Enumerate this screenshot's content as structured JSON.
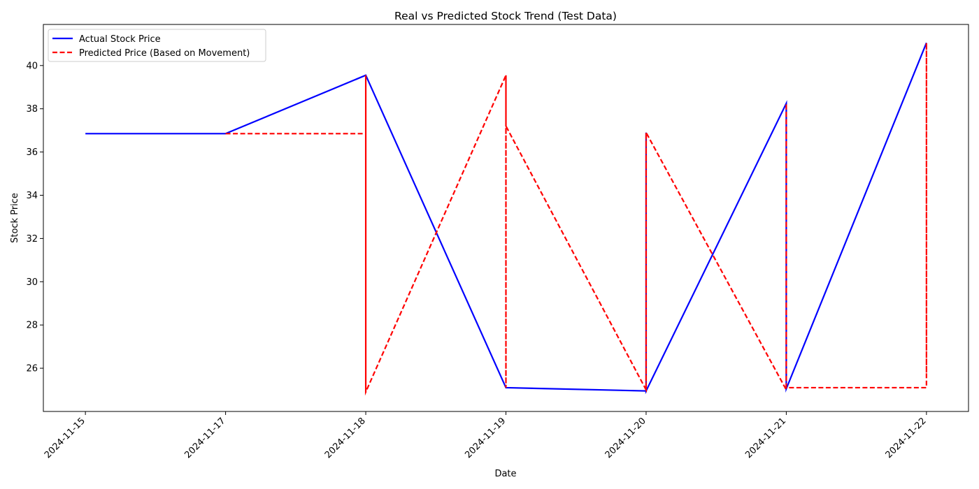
{
  "chart_data": {
    "type": "line",
    "title": "Real vs Predicted Stock Trend (Test Data)",
    "xlabel": "Date",
    "ylabel": "Stock Price",
    "x_ticks": [
      "2024-11-15",
      "2024-11-17",
      "2024-11-18",
      "2024-11-19",
      "2024-11-20",
      "2024-11-21",
      "2024-11-22"
    ],
    "y_ticks": [
      26,
      28,
      30,
      32,
      34,
      36,
      38,
      40
    ],
    "xlim": [
      -0.3,
      6.3
    ],
    "ylim": [
      24.0,
      41.9
    ],
    "legend_position": "top-left",
    "grid": false,
    "series": [
      {
        "name": "Actual Stock Price",
        "color": "#0000ff",
        "style": "solid",
        "points": [
          [
            0,
            36.85
          ],
          [
            1,
            36.85
          ],
          [
            2,
            39.55
          ],
          [
            2,
            39.55
          ],
          [
            2,
            39.55
          ],
          [
            2,
            39.55
          ],
          [
            3,
            25.1
          ],
          [
            3,
            25.1
          ],
          [
            3,
            25.1
          ],
          [
            3,
            25.1
          ],
          [
            4,
            24.95
          ],
          [
            4,
            36.9
          ],
          [
            4,
            24.95
          ],
          [
            4,
            36.9
          ],
          [
            4,
            24.95
          ],
          [
            5,
            38.25
          ],
          [
            5,
            25.05
          ],
          [
            5,
            38.25
          ],
          [
            5,
            25.05
          ],
          [
            6,
            41.05
          ],
          [
            6,
            41.05
          ],
          [
            6,
            41.05
          ]
        ]
      },
      {
        "name": "Predicted Price (Based on Movement)",
        "color": "#ff0000",
        "style": "dashed",
        "points": [
          [
            1,
            36.85
          ],
          [
            2,
            36.85
          ],
          [
            2,
            39.55
          ],
          [
            2,
            24.9
          ],
          [
            2,
            39.55
          ],
          [
            2,
            24.9
          ],
          [
            3,
            39.55
          ],
          [
            3,
            25.1
          ],
          [
            3,
            39.55
          ],
          [
            3,
            37.2
          ],
          [
            4,
            25.0
          ],
          [
            4,
            36.9
          ],
          [
            4,
            25.0
          ],
          [
            4,
            36.9
          ],
          [
            4,
            36.9
          ],
          [
            5,
            25.0
          ],
          [
            5,
            38.25
          ],
          [
            5,
            25.1
          ],
          [
            6,
            25.1
          ],
          [
            6,
            41.05
          ],
          [
            6,
            25.6
          ],
          [
            6,
            41.05
          ]
        ]
      }
    ]
  }
}
